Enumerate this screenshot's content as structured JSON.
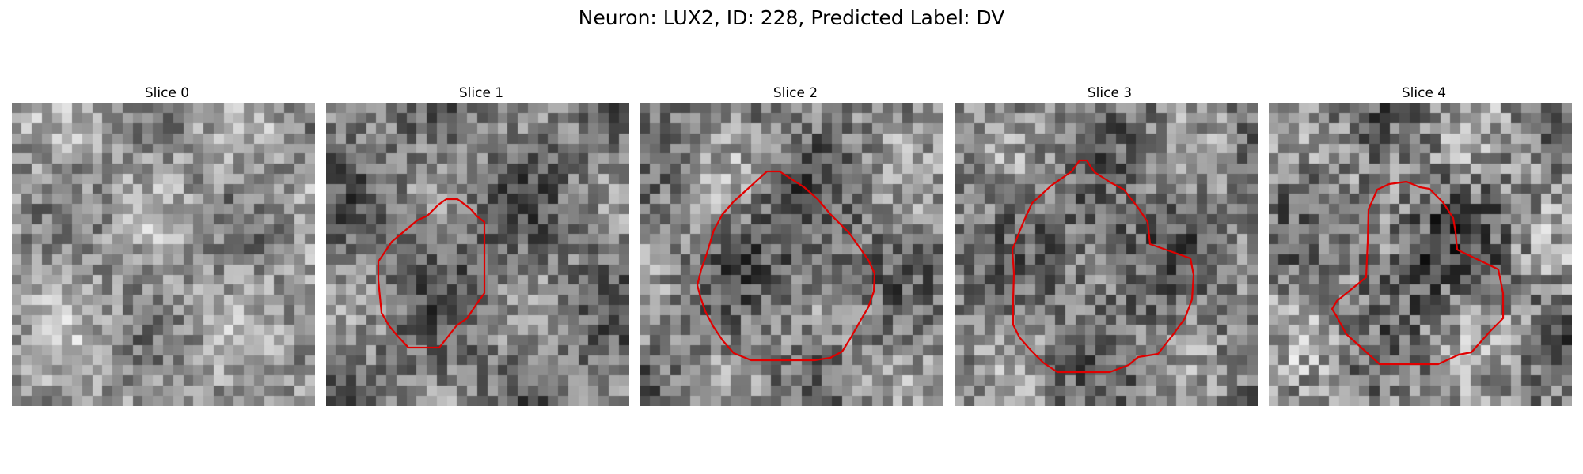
{
  "figure": {
    "title": "Neuron: LUX2, ID: 228, Predicted Label: DV"
  },
  "panels": [
    {
      "title": "Slice 0",
      "contour": false
    },
    {
      "title": "Slice 1",
      "contour": true
    },
    {
      "title": "Slice 2",
      "contour": true
    },
    {
      "title": "Slice 3",
      "contour": true
    },
    {
      "title": "Slice 4",
      "contour": true
    }
  ],
  "colors": {
    "contour": "#e00000",
    "background": "#ffffff"
  },
  "grid_size": 30
}
